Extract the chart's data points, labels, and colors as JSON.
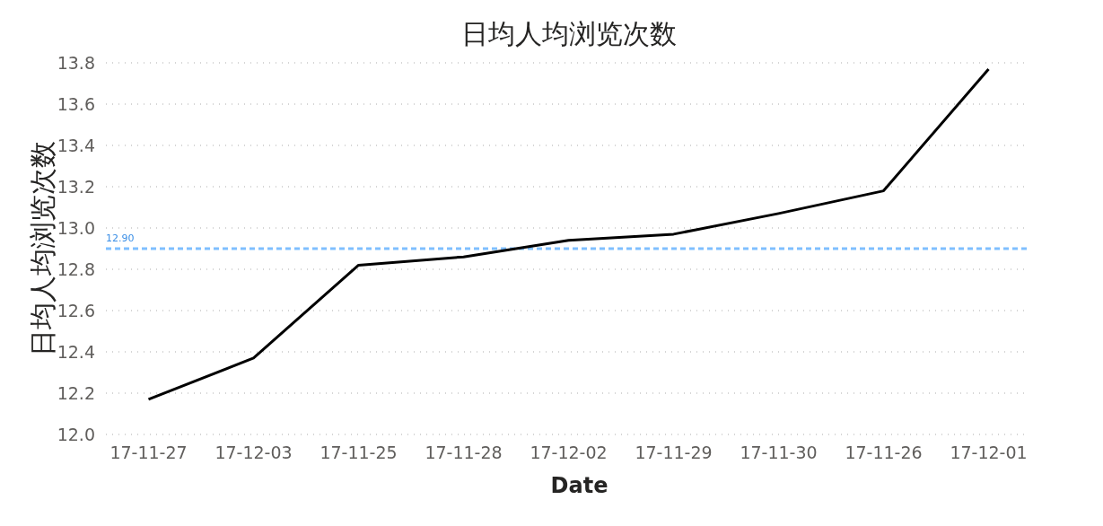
{
  "chart_data": {
    "type": "line",
    "title": "日均人均浏览次数",
    "xlabel": "Date",
    "ylabel": "日均人均浏览次数",
    "categories": [
      "17-11-27",
      "17-12-03",
      "17-11-25",
      "17-11-28",
      "17-12-02",
      "17-11-29",
      "17-11-30",
      "17-11-26",
      "17-12-01"
    ],
    "series": [
      {
        "color": "#000000",
        "values": [
          12.17,
          12.37,
          12.82,
          12.86,
          12.94,
          12.97,
          13.07,
          13.18,
          13.77
        ]
      }
    ],
    "ylim": [
      12.0,
      13.8
    ],
    "yticks": [
      {
        "value": 12.0,
        "label": "12.0"
      },
      12.2,
      12.4,
      12.6,
      12.8,
      {
        "value": 13.0,
        "label": "13.0"
      },
      13.2,
      13.4,
      13.6,
      13.8
    ],
    "grid": "y",
    "marker": "none",
    "line_style": "solid",
    "ref_lines": [
      {
        "axis": "y",
        "value": 12.9,
        "label": "12.90",
        "color": "#7fbfff",
        "line_style": "dashed"
      }
    ]
  }
}
